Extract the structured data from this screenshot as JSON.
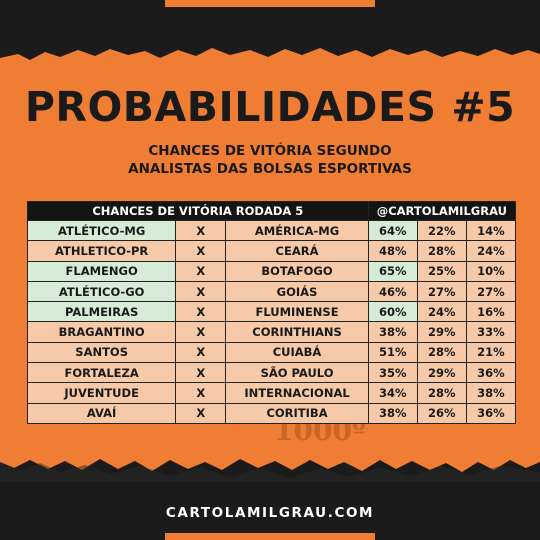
{
  "header": {
    "title": "PROBABILIDADES #5",
    "subtitle_line1": "CHANCES DE VITÓRIA SEGUNDO",
    "subtitle_line2": "ANALISTAS DAS BOLSAS ESPORTIVAS"
  },
  "table": {
    "header_left": "CHANCES DE VITÓRIA RODADA 5",
    "header_right": "@CARTOLAMILGRAU",
    "rows": [
      {
        "home": "ATLÉTICO-MG",
        "vs": "X",
        "away": "AMÉRICA-MG",
        "p_home": "64%",
        "p_draw": "22%",
        "p_away": "14%"
      },
      {
        "home": "ATHLETICO-PR",
        "vs": "X",
        "away": "CEARÁ",
        "p_home": "48%",
        "p_draw": "28%",
        "p_away": "24%"
      },
      {
        "home": "FLAMENGO",
        "vs": "X",
        "away": "BOTAFOGO",
        "p_home": "65%",
        "p_draw": "25%",
        "p_away": "10%"
      },
      {
        "home": "ATLÉTICO-GO",
        "vs": "X",
        "away": "GOIÁS",
        "p_home": "46%",
        "p_draw": "27%",
        "p_away": "27%"
      },
      {
        "home": "PALMEIRAS",
        "vs": "X",
        "away": "FLUMINENSE",
        "p_home": "60%",
        "p_draw": "24%",
        "p_away": "16%"
      },
      {
        "home": "BRAGANTINO",
        "vs": "X",
        "away": "CORINTHIANS",
        "p_home": "38%",
        "p_draw": "29%",
        "p_away": "33%"
      },
      {
        "home": "SANTOS",
        "vs": "X",
        "away": "CUIABÁ",
        "p_home": "51%",
        "p_draw": "28%",
        "p_away": "21%"
      },
      {
        "home": "FORTALEZA",
        "vs": "X",
        "away": "SÃO PAULO",
        "p_home": "35%",
        "p_draw": "29%",
        "p_away": "36%"
      },
      {
        "home": "JUVENTUDE",
        "vs": "X",
        "away": "INTERNACIONAL",
        "p_home": "34%",
        "p_draw": "28%",
        "p_away": "38%"
      },
      {
        "home": "AVAÍ",
        "vs": "X",
        "away": "CORITIBA",
        "p_home": "38%",
        "p_draw": "26%",
        "p_away": "36%"
      }
    ]
  },
  "watermark": {
    "text": "1000º"
  },
  "footer": {
    "text": "CARTOLAMILGRAU.COM"
  },
  "colors": {
    "orange": "#ef7d33",
    "dark": "#1b1b1b",
    "green_cell": "#d6ecd6",
    "peach_cell": "#f6c9a8"
  }
}
